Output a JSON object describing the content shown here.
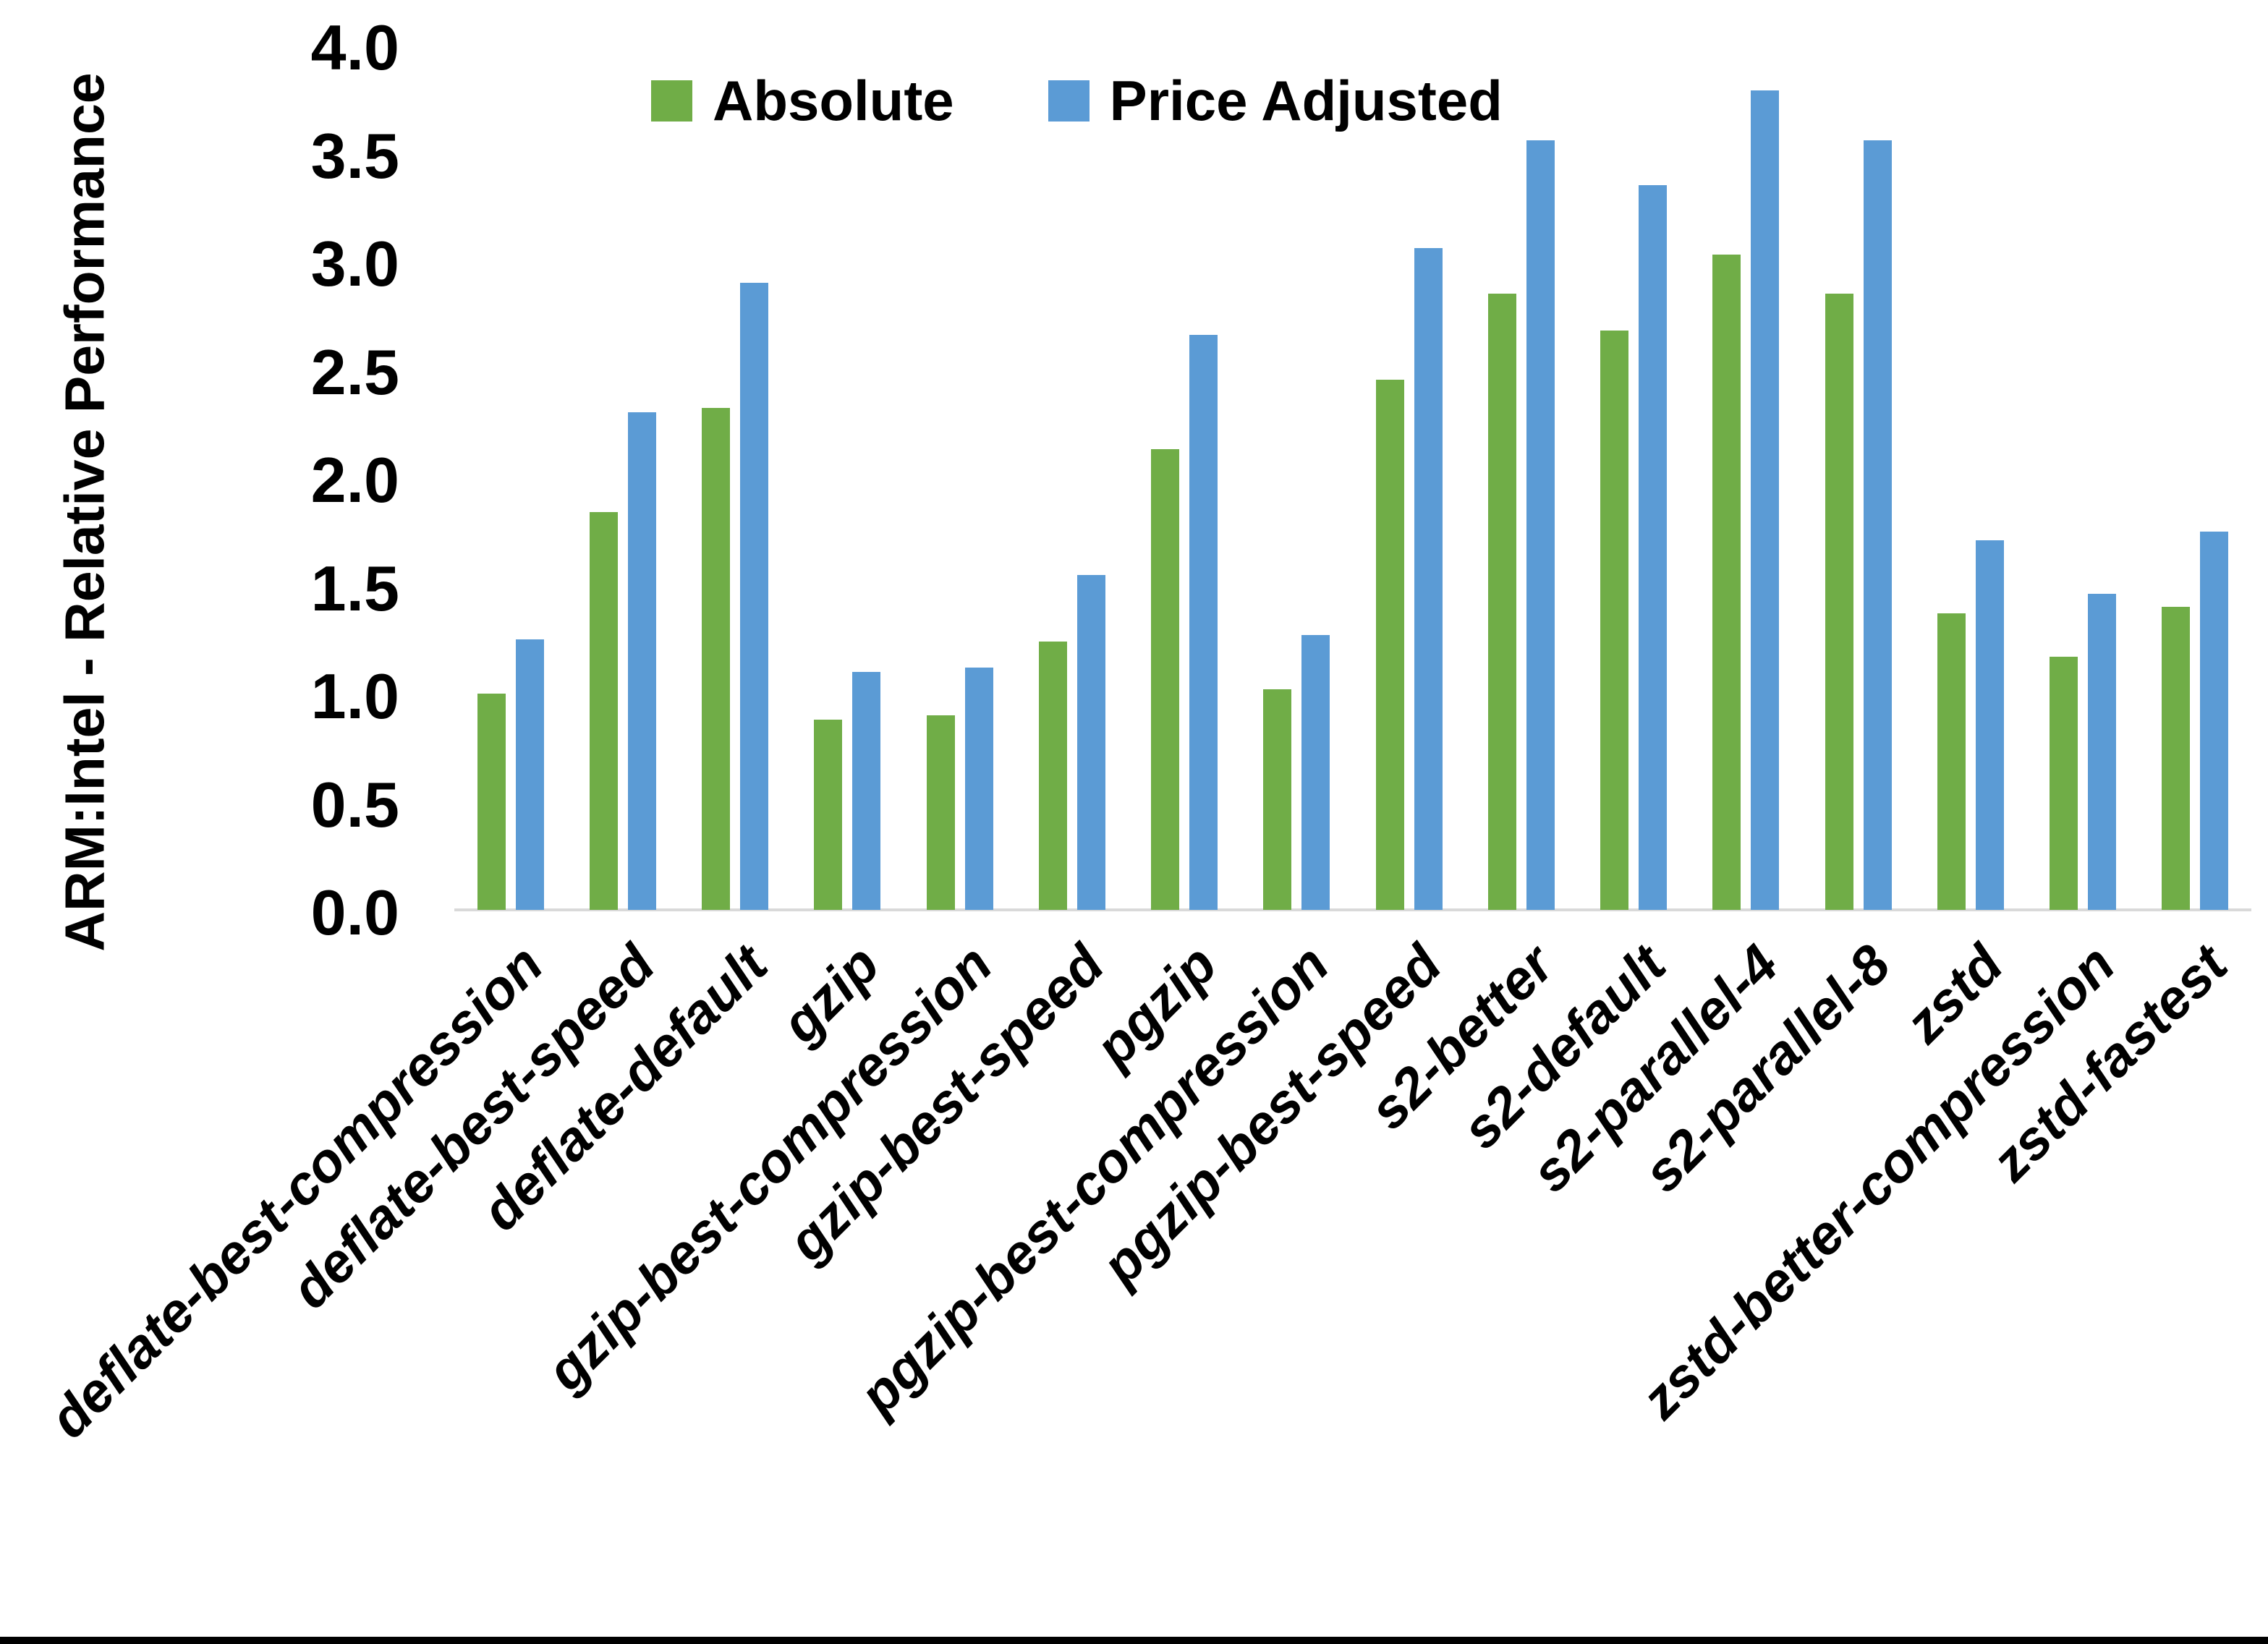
{
  "chart_data": {
    "type": "bar",
    "title": "",
    "ylabel": "ARM:Intel - Relative Performance",
    "xlabel": "",
    "ylim": [
      0.0,
      4.0
    ],
    "ytick_step": 0.5,
    "ytick_labels": [
      "4.0",
      "3.5",
      "3.0",
      "2.5",
      "2.0",
      "1.5",
      "1.0",
      "0.5",
      "0.0"
    ],
    "grid": "off",
    "legend_position": "top-center",
    "axis_line_color": "#D9D9D9",
    "categories": [
      "deflate-best-compression",
      "deflate-best-speed",
      "deflate-default",
      "gzip",
      "gzip-best-compression",
      "gzip-best-speed",
      "pgzip",
      "pgzip-best-compression",
      "pgzip-best-speed",
      "s2-better",
      "s2-default",
      "s2-parallel-4",
      "s2-parallel-8",
      "zstd",
      "zstd-better-compression",
      "zstd-fastest"
    ],
    "series": [
      {
        "name": "Absolute",
        "color": "#70AD47",
        "values": [
          1.0,
          1.84,
          2.32,
          0.88,
          0.9,
          1.24,
          2.13,
          1.02,
          2.45,
          2.85,
          2.68,
          3.03,
          2.85,
          1.37,
          1.17,
          1.4
        ]
      },
      {
        "name": "Price Adjusted",
        "color": "#5B9BD5",
        "values": [
          1.25,
          2.3,
          2.9,
          1.1,
          1.12,
          1.55,
          2.66,
          1.27,
          3.06,
          3.56,
          3.35,
          3.79,
          3.56,
          1.71,
          1.46,
          1.75
        ]
      }
    ]
  }
}
